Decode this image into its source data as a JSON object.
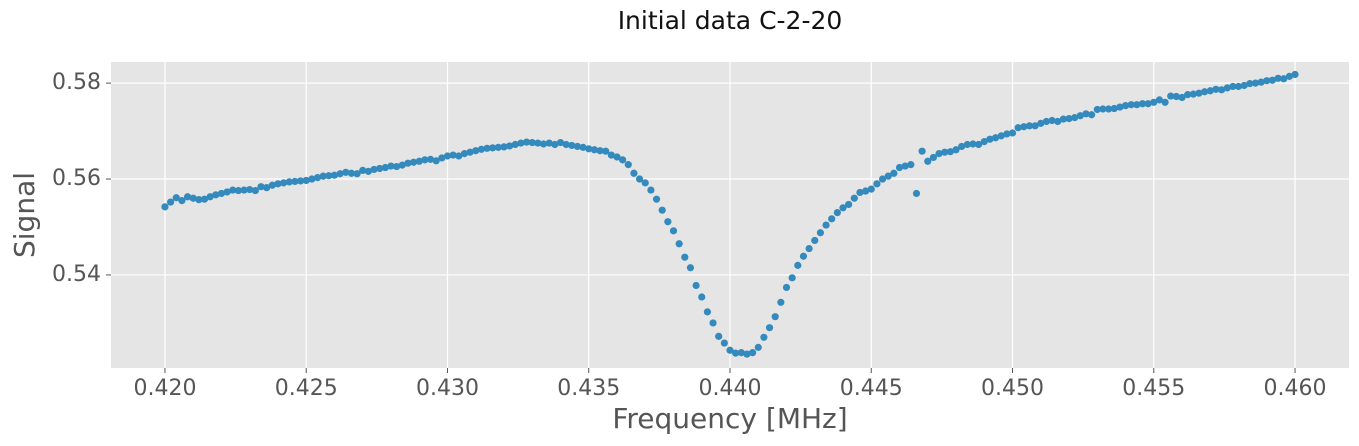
{
  "chart_data": {
    "type": "scatter",
    "title": "Initial data C-2-20",
    "xlabel": "Frequency [MHz]",
    "ylabel": "Signal",
    "color": "#348abd",
    "grid": true,
    "xlim": [
      0.41809,
      0.46191
    ],
    "ylim": [
      0.5206,
      0.5844
    ],
    "xticks": [
      {
        "value": 0.42,
        "label": "0.420"
      },
      {
        "value": 0.425,
        "label": "0.425"
      },
      {
        "value": 0.43,
        "label": "0.430"
      },
      {
        "value": 0.435,
        "label": "0.435"
      },
      {
        "value": 0.44,
        "label": "0.440"
      },
      {
        "value": 0.445,
        "label": "0.445"
      },
      {
        "value": 0.45,
        "label": "0.450"
      },
      {
        "value": 0.455,
        "label": "0.455"
      },
      {
        "value": 0.46,
        "label": "0.460"
      }
    ],
    "yticks": [
      0.54,
      0.56,
      0.58
    ],
    "x": [
      0.42,
      0.4202,
      0.4204,
      0.4206,
      0.4208,
      0.421,
      0.4212,
      0.4214,
      0.4216,
      0.4218,
      0.422,
      0.4222,
      0.4224,
      0.4226,
      0.4228,
      0.423,
      0.4232,
      0.4234,
      0.4236,
      0.4238,
      0.424,
      0.4242,
      0.4244,
      0.4246,
      0.4248,
      0.425,
      0.4252,
      0.4254,
      0.4256,
      0.4258,
      0.426,
      0.4262,
      0.4264,
      0.4266,
      0.4268,
      0.427,
      0.4272,
      0.4274,
      0.4276,
      0.4278,
      0.428,
      0.4282,
      0.4284,
      0.4286,
      0.4288,
      0.429,
      0.4292,
      0.4294,
      0.4296,
      0.4298,
      0.43,
      0.4302,
      0.4304,
      0.4306,
      0.4308,
      0.431,
      0.4312,
      0.4314,
      0.4316,
      0.4318,
      0.432,
      0.4322,
      0.4324,
      0.4326,
      0.4328,
      0.433,
      0.4332,
      0.4334,
      0.4336,
      0.4338,
      0.434,
      0.4342,
      0.4344,
      0.4346,
      0.4348,
      0.435,
      0.4352,
      0.4354,
      0.4356,
      0.4358,
      0.436,
      0.4362,
      0.4364,
      0.4366,
      0.4368,
      0.437,
      0.4372,
      0.4374,
      0.4376,
      0.4378,
      0.438,
      0.4382,
      0.4384,
      0.4386,
      0.4388,
      0.439,
      0.4392,
      0.4394,
      0.4396,
      0.4398,
      0.44,
      0.4402,
      0.4404,
      0.4406,
      0.4408,
      0.441,
      0.4412,
      0.4414,
      0.4416,
      0.4418,
      0.442,
      0.4422,
      0.4424,
      0.4426,
      0.4428,
      0.443,
      0.4432,
      0.4434,
      0.4436,
      0.4438,
      0.444,
      0.4442,
      0.4444,
      0.4446,
      0.4448,
      0.445,
      0.4452,
      0.4454,
      0.4456,
      0.4458,
      0.446,
      0.4462,
      0.4464,
      0.4466,
      0.4468,
      0.447,
      0.4472,
      0.4474,
      0.4476,
      0.4478,
      0.448,
      0.4482,
      0.4484,
      0.4486,
      0.4488,
      0.449,
      0.4492,
      0.4494,
      0.4496,
      0.4498,
      0.45,
      0.4502,
      0.4504,
      0.4506,
      0.4508,
      0.451,
      0.4512,
      0.4514,
      0.4516,
      0.4518,
      0.452,
      0.4522,
      0.4524,
      0.4526,
      0.4528,
      0.453,
      0.4532,
      0.4534,
      0.4536,
      0.4538,
      0.454,
      0.4542,
      0.4544,
      0.4546,
      0.4548,
      0.455,
      0.4552,
      0.4554,
      0.4556,
      0.4558,
      0.456,
      0.4562,
      0.4564,
      0.4566,
      0.4568,
      0.457,
      0.4572,
      0.4574,
      0.4576,
      0.4578,
      0.458,
      0.4582,
      0.4584,
      0.4586,
      0.4588,
      0.459,
      0.4592,
      0.4594,
      0.4596,
      0.4598,
      0.46
    ],
    "values": [
      0.5542,
      0.5552,
      0.5561,
      0.5555,
      0.5563,
      0.556,
      0.5557,
      0.5558,
      0.5563,
      0.5567,
      0.557,
      0.5573,
      0.5577,
      0.5576,
      0.5577,
      0.5578,
      0.5576,
      0.5584,
      0.5582,
      0.5587,
      0.559,
      0.5592,
      0.5594,
      0.5595,
      0.5596,
      0.5597,
      0.56,
      0.5603,
      0.5606,
      0.5607,
      0.5608,
      0.5611,
      0.5614,
      0.5612,
      0.5611,
      0.5618,
      0.5616,
      0.562,
      0.5622,
      0.5624,
      0.5627,
      0.5626,
      0.5629,
      0.5633,
      0.5635,
      0.5637,
      0.564,
      0.5641,
      0.5638,
      0.5644,
      0.5648,
      0.565,
      0.5648,
      0.5653,
      0.5656,
      0.5659,
      0.5662,
      0.5664,
      0.5665,
      0.5666,
      0.5667,
      0.5669,
      0.5672,
      0.5675,
      0.5677,
      0.5676,
      0.5675,
      0.5673,
      0.5675,
      0.5672,
      0.5676,
      0.5672,
      0.567,
      0.5668,
      0.5666,
      0.5663,
      0.5661,
      0.5659,
      0.5658,
      0.565,
      0.5646,
      0.564,
      0.563,
      0.5612,
      0.56,
      0.5592,
      0.5577,
      0.5558,
      0.5535,
      0.5511,
      0.5492,
      0.5465,
      0.5437,
      0.5415,
      0.5378,
      0.5354,
      0.5323,
      0.53,
      0.5272,
      0.5258,
      0.5243,
      0.5237,
      0.5238,
      0.5235,
      0.5238,
      0.5249,
      0.527,
      0.529,
      0.5313,
      0.5343,
      0.5374,
      0.5394,
      0.542,
      0.5439,
      0.5455,
      0.5472,
      0.5488,
      0.5504,
      0.5517,
      0.553,
      0.554,
      0.5547,
      0.556,
      0.5572,
      0.5575,
      0.5579,
      0.559,
      0.56,
      0.5606,
      0.5612,
      0.5624,
      0.5627,
      0.563,
      0.557,
      0.5658,
      0.5637,
      0.5645,
      0.5653,
      0.5656,
      0.5657,
      0.5661,
      0.5668,
      0.5672,
      0.5673,
      0.5672,
      0.5678,
      0.5683,
      0.5686,
      0.569,
      0.5694,
      0.5696,
      0.5707,
      0.5709,
      0.5711,
      0.5711,
      0.5716,
      0.572,
      0.5722,
      0.572,
      0.5725,
      0.5726,
      0.5728,
      0.5732,
      0.5736,
      0.5734,
      0.5745,
      0.5746,
      0.5746,
      0.5747,
      0.575,
      0.5753,
      0.5755,
      0.5755,
      0.5757,
      0.5757,
      0.576,
      0.5765,
      0.576,
      0.5773,
      0.5772,
      0.577,
      0.5776,
      0.5777,
      0.5779,
      0.5782,
      0.5784,
      0.5787,
      0.5786,
      0.579,
      0.5793,
      0.5793,
      0.5795,
      0.5799,
      0.58,
      0.5802,
      0.5805,
      0.5806,
      0.581,
      0.5809,
      0.5814,
      0.5818
    ]
  }
}
